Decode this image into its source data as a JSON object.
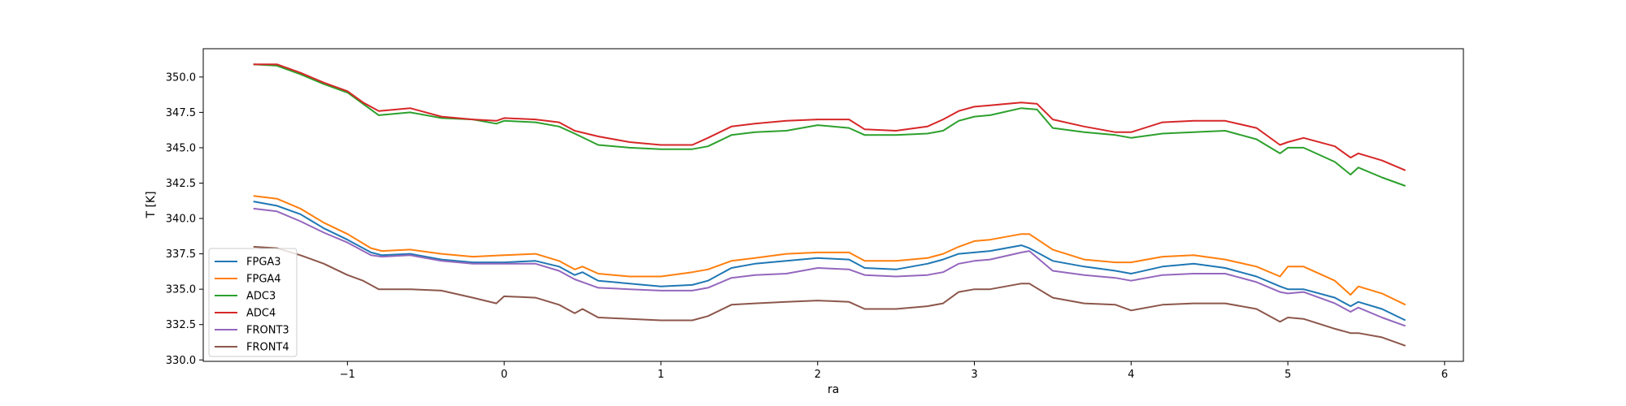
{
  "chart_data": {
    "type": "line",
    "title": "",
    "xlabel": "ra",
    "ylabel": "T [K]",
    "xlim": [
      -1.92,
      6.12
    ],
    "ylim": [
      329.9,
      352.0
    ],
    "xticks": [
      -1,
      0,
      1,
      2,
      3,
      4,
      5,
      6
    ],
    "xtick_labels": [
      "−1",
      "0",
      "1",
      "2",
      "3",
      "4",
      "5",
      "6"
    ],
    "yticks": [
      330.0,
      332.5,
      335.0,
      337.5,
      340.0,
      342.5,
      345.0,
      347.5,
      350.0
    ],
    "ytick_labels": [
      "330.0",
      "332.5",
      "335.0",
      "337.5",
      "340.0",
      "342.5",
      "345.0",
      "347.5",
      "350.0"
    ],
    "grid": false,
    "legend_position": "lower-left",
    "series": [
      {
        "name": "FPGA3",
        "color": "#1f77b4",
        "x": [
          -1.6,
          -1.45,
          -1.3,
          -1.15,
          -1.0,
          -0.85,
          -0.78,
          -0.6,
          -0.4,
          -0.2,
          0.0,
          0.2,
          0.35,
          0.45,
          0.5,
          0.6,
          0.8,
          1.0,
          1.2,
          1.3,
          1.45,
          1.6,
          1.8,
          2.0,
          2.2,
          2.3,
          2.5,
          2.7,
          2.8,
          2.9,
          3.0,
          3.1,
          3.3,
          3.35,
          3.5,
          3.7,
          3.9,
          4.0,
          4.2,
          4.4,
          4.6,
          4.8,
          4.95,
          5.0,
          5.1,
          5.3,
          5.4,
          5.45,
          5.6,
          5.75
        ],
        "y": [
          341.2,
          340.9,
          340.3,
          339.3,
          338.5,
          337.6,
          337.4,
          337.5,
          337.1,
          336.9,
          336.9,
          337.0,
          336.6,
          336.0,
          336.2,
          335.6,
          335.4,
          335.2,
          335.3,
          335.6,
          336.5,
          336.8,
          337.0,
          337.2,
          337.1,
          336.5,
          336.4,
          336.8,
          337.1,
          337.5,
          337.6,
          337.7,
          338.1,
          337.9,
          337.0,
          336.6,
          336.3,
          336.1,
          336.6,
          336.8,
          336.5,
          335.9,
          335.2,
          335.0,
          335.0,
          334.4,
          333.8,
          334.1,
          333.6,
          332.8
        ]
      },
      {
        "name": "FPGA4",
        "color": "#ff7f0e",
        "x": [
          -1.6,
          -1.45,
          -1.3,
          -1.15,
          -1.0,
          -0.85,
          -0.78,
          -0.6,
          -0.4,
          -0.2,
          0.0,
          0.2,
          0.35,
          0.45,
          0.5,
          0.6,
          0.8,
          1.0,
          1.2,
          1.3,
          1.45,
          1.6,
          1.8,
          2.0,
          2.2,
          2.3,
          2.5,
          2.7,
          2.8,
          2.9,
          3.0,
          3.1,
          3.3,
          3.35,
          3.5,
          3.7,
          3.9,
          4.0,
          4.2,
          4.4,
          4.6,
          4.8,
          4.95,
          5.0,
          5.1,
          5.3,
          5.4,
          5.45,
          5.6,
          5.75
        ],
        "y": [
          341.6,
          341.4,
          340.7,
          339.7,
          338.9,
          337.9,
          337.7,
          337.8,
          337.5,
          337.3,
          337.4,
          337.5,
          337.0,
          336.4,
          336.6,
          336.1,
          335.9,
          335.9,
          336.2,
          336.4,
          337.0,
          337.2,
          337.5,
          337.6,
          337.6,
          337.0,
          337.0,
          337.2,
          337.5,
          338.0,
          338.4,
          338.5,
          338.9,
          338.9,
          337.8,
          337.1,
          336.9,
          336.9,
          337.3,
          337.4,
          337.1,
          336.6,
          335.9,
          336.6,
          336.6,
          335.6,
          334.6,
          335.2,
          334.7,
          333.9
        ]
      },
      {
        "name": "ADC3",
        "color": "#2ca02c",
        "x": [
          -1.6,
          -1.45,
          -1.3,
          -1.15,
          -1.0,
          -0.9,
          -0.8,
          -0.6,
          -0.4,
          -0.2,
          -0.05,
          0.0,
          0.2,
          0.35,
          0.45,
          0.6,
          0.8,
          1.0,
          1.2,
          1.3,
          1.45,
          1.6,
          1.8,
          2.0,
          2.2,
          2.3,
          2.5,
          2.7,
          2.8,
          2.9,
          3.0,
          3.1,
          3.3,
          3.4,
          3.5,
          3.7,
          3.9,
          4.0,
          4.2,
          4.4,
          4.6,
          4.8,
          4.95,
          5.0,
          5.1,
          5.3,
          5.4,
          5.45,
          5.6,
          5.75
        ],
        "y": [
          350.9,
          350.8,
          350.2,
          349.5,
          348.9,
          348.1,
          347.3,
          347.5,
          347.1,
          347.0,
          346.7,
          346.9,
          346.8,
          346.5,
          346.0,
          345.2,
          345.0,
          344.9,
          344.9,
          345.1,
          345.9,
          346.1,
          346.2,
          346.6,
          346.4,
          345.9,
          345.9,
          346.0,
          346.2,
          346.9,
          347.2,
          347.3,
          347.8,
          347.7,
          346.4,
          346.1,
          345.9,
          345.7,
          346.0,
          346.1,
          346.2,
          345.6,
          344.6,
          345.0,
          345.0,
          344.0,
          343.1,
          343.6,
          342.9,
          342.3
        ]
      },
      {
        "name": "ADC4",
        "color": "#d62728",
        "x": [
          -1.6,
          -1.45,
          -1.3,
          -1.15,
          -1.0,
          -0.9,
          -0.8,
          -0.6,
          -0.4,
          -0.2,
          -0.05,
          0.0,
          0.2,
          0.35,
          0.45,
          0.6,
          0.8,
          1.0,
          1.2,
          1.3,
          1.45,
          1.6,
          1.8,
          2.0,
          2.2,
          2.3,
          2.5,
          2.7,
          2.8,
          2.9,
          3.0,
          3.1,
          3.3,
          3.4,
          3.5,
          3.7,
          3.9,
          4.0,
          4.2,
          4.4,
          4.6,
          4.8,
          4.95,
          5.0,
          5.1,
          5.3,
          5.4,
          5.45,
          5.6,
          5.75
        ],
        "y": [
          350.9,
          350.9,
          350.3,
          349.6,
          349.0,
          348.2,
          347.6,
          347.8,
          347.2,
          347.0,
          346.9,
          347.1,
          347.0,
          346.8,
          346.2,
          345.8,
          345.4,
          345.2,
          345.2,
          345.7,
          346.5,
          346.7,
          346.9,
          347.0,
          347.0,
          346.3,
          346.2,
          346.5,
          347.0,
          347.6,
          347.9,
          348.0,
          348.2,
          348.1,
          347.0,
          346.5,
          346.1,
          346.1,
          346.8,
          346.9,
          346.9,
          346.4,
          345.2,
          345.4,
          345.7,
          345.1,
          344.3,
          344.6,
          344.1,
          343.4
        ]
      },
      {
        "name": "FRONT3",
        "color": "#9467bd",
        "x": [
          -1.6,
          -1.45,
          -1.3,
          -1.15,
          -1.0,
          -0.85,
          -0.78,
          -0.6,
          -0.4,
          -0.2,
          0.0,
          0.2,
          0.35,
          0.45,
          0.5,
          0.6,
          0.8,
          1.0,
          1.2,
          1.3,
          1.45,
          1.6,
          1.8,
          2.0,
          2.2,
          2.3,
          2.5,
          2.7,
          2.8,
          2.9,
          3.0,
          3.1,
          3.3,
          3.35,
          3.5,
          3.7,
          3.9,
          4.0,
          4.2,
          4.4,
          4.6,
          4.8,
          4.95,
          5.0,
          5.1,
          5.3,
          5.4,
          5.45,
          5.6,
          5.75
        ],
        "y": [
          340.7,
          340.5,
          339.8,
          339.0,
          338.3,
          337.4,
          337.3,
          337.4,
          337.0,
          336.8,
          336.8,
          336.8,
          336.3,
          335.7,
          335.5,
          335.1,
          335.0,
          334.9,
          334.9,
          335.1,
          335.8,
          336.0,
          336.1,
          336.5,
          336.4,
          336.0,
          335.9,
          336.0,
          336.2,
          336.8,
          337.0,
          337.1,
          337.6,
          337.7,
          336.3,
          336.0,
          335.8,
          335.6,
          336.0,
          336.1,
          336.1,
          335.5,
          334.8,
          334.7,
          334.8,
          334.0,
          333.4,
          333.7,
          333.0,
          332.4
        ]
      },
      {
        "name": "FRONT4",
        "color": "#8c564b",
        "x": [
          -1.6,
          -1.45,
          -1.3,
          -1.15,
          -1.0,
          -0.9,
          -0.8,
          -0.6,
          -0.4,
          -0.2,
          -0.05,
          0.0,
          0.2,
          0.35,
          0.45,
          0.5,
          0.6,
          0.8,
          1.0,
          1.2,
          1.3,
          1.45,
          1.6,
          1.8,
          2.0,
          2.2,
          2.3,
          2.5,
          2.7,
          2.8,
          2.9,
          3.0,
          3.1,
          3.3,
          3.35,
          3.5,
          3.7,
          3.9,
          4.0,
          4.2,
          4.4,
          4.6,
          4.8,
          4.95,
          5.0,
          5.1,
          5.3,
          5.4,
          5.45,
          5.6,
          5.75
        ],
        "y": [
          338.0,
          337.9,
          337.4,
          336.8,
          336.0,
          335.6,
          335.0,
          335.0,
          334.9,
          334.4,
          334.0,
          334.5,
          334.4,
          333.9,
          333.3,
          333.6,
          333.0,
          332.9,
          332.8,
          332.8,
          333.1,
          333.9,
          334.0,
          334.1,
          334.2,
          334.1,
          333.6,
          333.6,
          333.8,
          334.0,
          334.8,
          335.0,
          335.0,
          335.4,
          335.4,
          334.4,
          334.0,
          333.9,
          333.5,
          333.9,
          334.0,
          334.0,
          333.6,
          332.7,
          333.0,
          332.9,
          332.2,
          331.9,
          331.9,
          331.6,
          331.0
        ]
      }
    ]
  }
}
